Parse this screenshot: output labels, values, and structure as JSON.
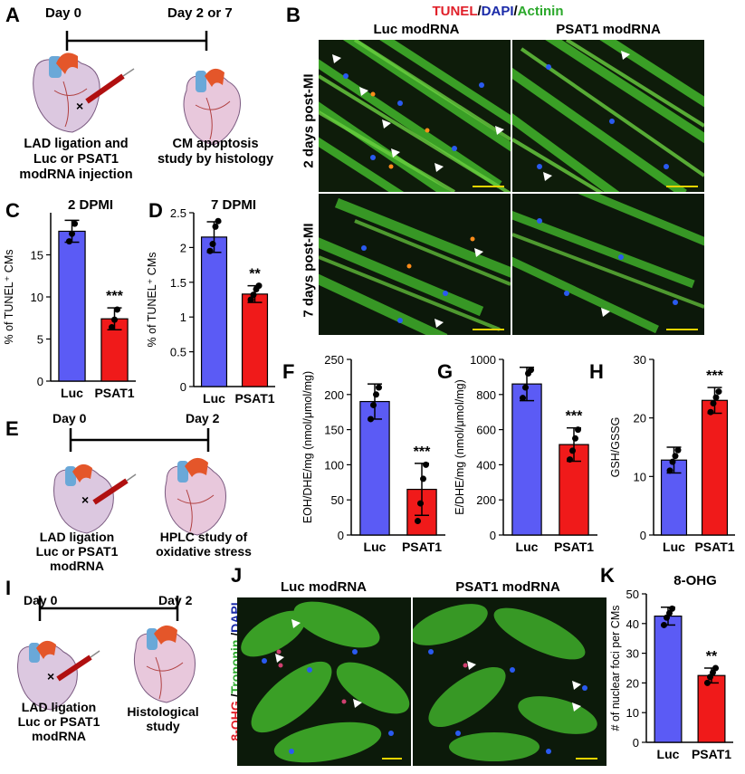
{
  "panels": {
    "A": {
      "label": "A",
      "day_start": "Day 0",
      "day_end": "Day 2 or 7",
      "caption_left": [
        "LAD ligation and",
        "Luc or PSAT1",
        "modRNA injection"
      ],
      "caption_right": [
        "CM apoptosis",
        "study by histology"
      ]
    },
    "B": {
      "label": "B",
      "stain_title": {
        "tunel": "TUNEL",
        "sep1": "/",
        "dapi": "DAPI",
        "sep2": "/",
        "actinin": "Actinin"
      },
      "columns": [
        "Luc modRNA",
        "PSAT1 modRNA"
      ],
      "rows": [
        "2 days post-MI",
        "7 days post-MI"
      ]
    },
    "E": {
      "label": "E",
      "day_start": "Day 0",
      "day_end": "Day 2",
      "caption_left": [
        "LAD ligation",
        "Luc or PSAT1",
        "modRNA"
      ],
      "caption_right": [
        "HPLC study of",
        "oxidative stress"
      ]
    },
    "I": {
      "label": "I",
      "day_start": "Day 0",
      "day_end": "Day 2",
      "caption_left": [
        "LAD ligation",
        "Luc or PSAT1",
        "modRNA"
      ],
      "caption_right": [
        "Histological",
        "study"
      ]
    },
    "J": {
      "label": "J",
      "columns": [
        "Luc modRNA",
        "PSAT1 modRNA"
      ],
      "stain_label": {
        "ohg": "8-OHG",
        "sep1": " /",
        "troponin": "Troponin",
        "sep2": " /",
        "dapi": "DAPI"
      }
    }
  },
  "colors": {
    "luc": "#5b5bf5",
    "psat1": "#f01a1a",
    "tunel": "#e0202a",
    "dapi": "#1a2aa8",
    "actinin": "#2aa82a",
    "scalebar": "#e8d400"
  },
  "chart_data": [
    {
      "id": "C",
      "type": "bar",
      "title": "2 DPMI",
      "ylabel": "% of TUNEL⁺ CMs",
      "categories": [
        "Luc",
        "PSAT1"
      ],
      "values": [
        17.8,
        7.4
      ],
      "errors": [
        1.3,
        1.3
      ],
      "points": [
        [
          16.6,
          17.5,
          18.7
        ],
        [
          6.4,
          7.3,
          8.5
        ]
      ],
      "ylim": [
        0,
        20
      ],
      "yticks": [
        0,
        5,
        10,
        15
      ],
      "significance": "***"
    },
    {
      "id": "D",
      "type": "bar",
      "title": "7 DPMI",
      "ylabel": "% of TUNEL⁺ CMs",
      "categories": [
        "Luc",
        "PSAT1"
      ],
      "values": [
        2.15,
        1.33
      ],
      "errors": [
        0.22,
        0.12
      ],
      "points": [
        [
          1.95,
          2.05,
          2.3,
          2.38
        ],
        [
          1.25,
          1.32,
          1.4,
          1.45
        ]
      ],
      "ylim": [
        0,
        2.5
      ],
      "yticks": [
        0.0,
        0.5,
        1.0,
        1.5,
        2.0,
        2.5
      ],
      "significance": "**"
    },
    {
      "id": "F",
      "type": "bar",
      "title": "",
      "ylabel": "EOH/DHE/mg (nmol/μmol/mg)",
      "categories": [
        "Luc",
        "PSAT1"
      ],
      "values": [
        190,
        65
      ],
      "errors": [
        25,
        37
      ],
      "points": [
        [
          165,
          185,
          200,
          210
        ],
        [
          20,
          45,
          80,
          100
        ]
      ],
      "ylim": [
        0,
        250
      ],
      "yticks": [
        0,
        50,
        100,
        150,
        200,
        250
      ],
      "significance": "***"
    },
    {
      "id": "G",
      "type": "bar",
      "title": "",
      "ylabel": "E/DHE/mg (nmol/μmol/mg)",
      "categories": [
        "Luc",
        "PSAT1"
      ],
      "values": [
        860,
        515
      ],
      "errors": [
        95,
        95
      ],
      "points": [
        [
          780,
          840,
          920,
          940
        ],
        [
          430,
          480,
          550,
          600
        ]
      ],
      "ylim": [
        0,
        1000
      ],
      "yticks": [
        0,
        200,
        400,
        600,
        800,
        1000
      ],
      "significance": "***"
    },
    {
      "id": "H",
      "type": "bar",
      "title": "",
      "ylabel": "GSH/GSSG",
      "categories": [
        "Luc",
        "PSAT1"
      ],
      "values": [
        12.8,
        23
      ],
      "errors": [
        2.2,
        2.2
      ],
      "points": [
        [
          11,
          12.5,
          13.5,
          14.5
        ],
        [
          21,
          22.5,
          23.5,
          24.5
        ]
      ],
      "ylim": [
        0,
        30
      ],
      "yticks": [
        0,
        10,
        20,
        30
      ],
      "significance": "***"
    },
    {
      "id": "K",
      "type": "bar",
      "title": "8-OHG",
      "ylabel": "# of nuclear foci per CMs",
      "categories": [
        "Luc",
        "PSAT1"
      ],
      "values": [
        42.5,
        22.5
      ],
      "errors": [
        3,
        2.5
      ],
      "points": [
        [
          39.5,
          42,
          43.5,
          45
        ],
        [
          20,
          22,
          23.5,
          25
        ]
      ],
      "ylim": [
        0,
        50
      ],
      "yticks": [
        0,
        10,
        20,
        30,
        40,
        50
      ],
      "significance": "**"
    }
  ]
}
